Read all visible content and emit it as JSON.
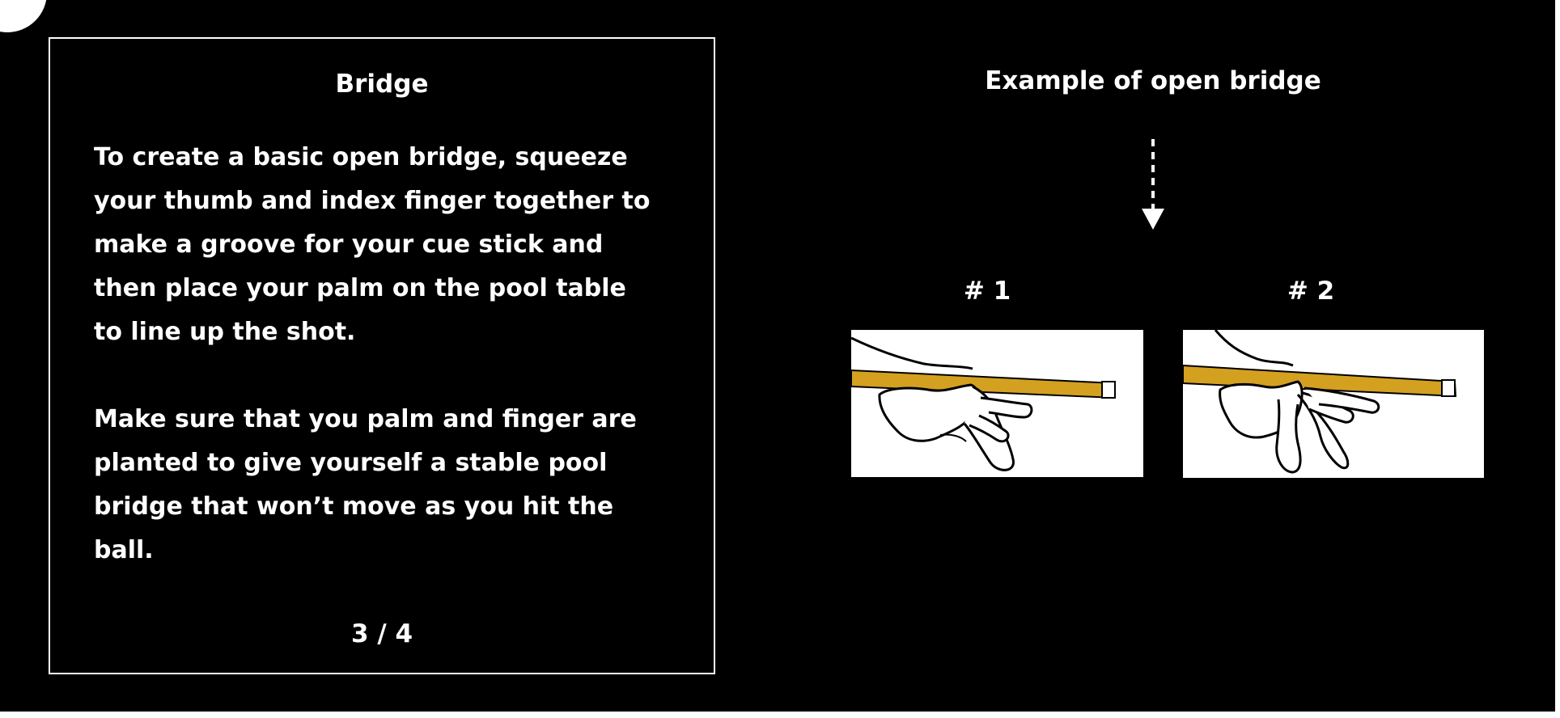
{
  "card": {
    "title": "Bridge",
    "paragraph_1": "To create a basic open bridge,  squeeze your thumb and index finger together to make a groove for your cue stick and then place your palm on the pool table to line up the shot.",
    "paragraph_2": "Make sure that you palm and finger are planted to give yourself a stable pool bridge that won’t move as you hit the ball.",
    "page_indicator": "3 / 4"
  },
  "example": {
    "title": "Example of open bridge",
    "figures": [
      {
        "label": "# 1",
        "icon": "open-bridge-hand-illustration"
      },
      {
        "label": "# 2",
        "icon": "open-bridge-hand-illustration"
      }
    ]
  },
  "colors": {
    "background": "#000000",
    "text": "#ffffff",
    "cue_stick": "#d4a020",
    "figure_background": "#ffffff"
  }
}
